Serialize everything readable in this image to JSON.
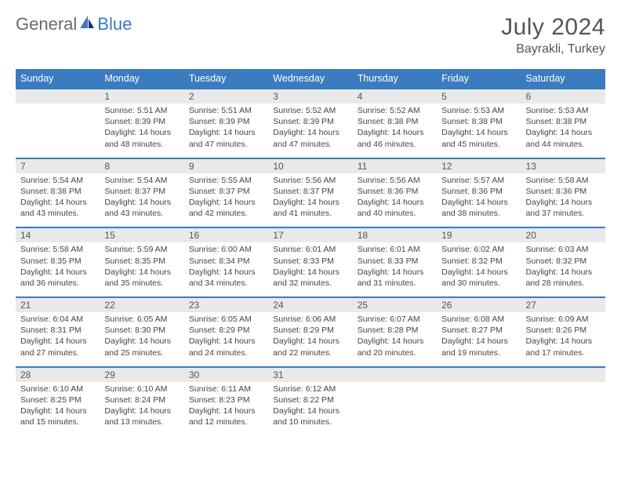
{
  "logo": {
    "text_general": "General",
    "text_blue": "Blue"
  },
  "title": "July 2024",
  "location": "Bayrakli, Turkey",
  "colors": {
    "header_bg": "#3b7bbf",
    "header_text": "#ffffff",
    "daynum_bg": "#e9e9e9",
    "border_top": "#3b7bbf",
    "body_text": "#454545",
    "title_text": "#555555"
  },
  "dow": [
    "Sunday",
    "Monday",
    "Tuesday",
    "Wednesday",
    "Thursday",
    "Friday",
    "Saturday"
  ],
  "weeks": [
    [
      null,
      {
        "n": "1",
        "sr": "5:51 AM",
        "ss": "8:39 PM",
        "dl1": "14 hours",
        "dl2": "and 48 minutes."
      },
      {
        "n": "2",
        "sr": "5:51 AM",
        "ss": "8:39 PM",
        "dl1": "14 hours",
        "dl2": "and 47 minutes."
      },
      {
        "n": "3",
        "sr": "5:52 AM",
        "ss": "8:39 PM",
        "dl1": "14 hours",
        "dl2": "and 47 minutes."
      },
      {
        "n": "4",
        "sr": "5:52 AM",
        "ss": "8:38 PM",
        "dl1": "14 hours",
        "dl2": "and 46 minutes."
      },
      {
        "n": "5",
        "sr": "5:53 AM",
        "ss": "8:38 PM",
        "dl1": "14 hours",
        "dl2": "and 45 minutes."
      },
      {
        "n": "6",
        "sr": "5:53 AM",
        "ss": "8:38 PM",
        "dl1": "14 hours",
        "dl2": "and 44 minutes."
      }
    ],
    [
      {
        "n": "7",
        "sr": "5:54 AM",
        "ss": "8:38 PM",
        "dl1": "14 hours",
        "dl2": "and 43 minutes."
      },
      {
        "n": "8",
        "sr": "5:54 AM",
        "ss": "8:37 PM",
        "dl1": "14 hours",
        "dl2": "and 43 minutes."
      },
      {
        "n": "9",
        "sr": "5:55 AM",
        "ss": "8:37 PM",
        "dl1": "14 hours",
        "dl2": "and 42 minutes."
      },
      {
        "n": "10",
        "sr": "5:56 AM",
        "ss": "8:37 PM",
        "dl1": "14 hours",
        "dl2": "and 41 minutes."
      },
      {
        "n": "11",
        "sr": "5:56 AM",
        "ss": "8:36 PM",
        "dl1": "14 hours",
        "dl2": "and 40 minutes."
      },
      {
        "n": "12",
        "sr": "5:57 AM",
        "ss": "8:36 PM",
        "dl1": "14 hours",
        "dl2": "and 38 minutes."
      },
      {
        "n": "13",
        "sr": "5:58 AM",
        "ss": "8:36 PM",
        "dl1": "14 hours",
        "dl2": "and 37 minutes."
      }
    ],
    [
      {
        "n": "14",
        "sr": "5:58 AM",
        "ss": "8:35 PM",
        "dl1": "14 hours",
        "dl2": "and 36 minutes."
      },
      {
        "n": "15",
        "sr": "5:59 AM",
        "ss": "8:35 PM",
        "dl1": "14 hours",
        "dl2": "and 35 minutes."
      },
      {
        "n": "16",
        "sr": "6:00 AM",
        "ss": "8:34 PM",
        "dl1": "14 hours",
        "dl2": "and 34 minutes."
      },
      {
        "n": "17",
        "sr": "6:01 AM",
        "ss": "8:33 PM",
        "dl1": "14 hours",
        "dl2": "and 32 minutes."
      },
      {
        "n": "18",
        "sr": "6:01 AM",
        "ss": "8:33 PM",
        "dl1": "14 hours",
        "dl2": "and 31 minutes."
      },
      {
        "n": "19",
        "sr": "6:02 AM",
        "ss": "8:32 PM",
        "dl1": "14 hours",
        "dl2": "and 30 minutes."
      },
      {
        "n": "20",
        "sr": "6:03 AM",
        "ss": "8:32 PM",
        "dl1": "14 hours",
        "dl2": "and 28 minutes."
      }
    ],
    [
      {
        "n": "21",
        "sr": "6:04 AM",
        "ss": "8:31 PM",
        "dl1": "14 hours",
        "dl2": "and 27 minutes."
      },
      {
        "n": "22",
        "sr": "6:05 AM",
        "ss": "8:30 PM",
        "dl1": "14 hours",
        "dl2": "and 25 minutes."
      },
      {
        "n": "23",
        "sr": "6:05 AM",
        "ss": "8:29 PM",
        "dl1": "14 hours",
        "dl2": "and 24 minutes."
      },
      {
        "n": "24",
        "sr": "6:06 AM",
        "ss": "8:29 PM",
        "dl1": "14 hours",
        "dl2": "and 22 minutes."
      },
      {
        "n": "25",
        "sr": "6:07 AM",
        "ss": "8:28 PM",
        "dl1": "14 hours",
        "dl2": "and 20 minutes."
      },
      {
        "n": "26",
        "sr": "6:08 AM",
        "ss": "8:27 PM",
        "dl1": "14 hours",
        "dl2": "and 19 minutes."
      },
      {
        "n": "27",
        "sr": "6:09 AM",
        "ss": "8:26 PM",
        "dl1": "14 hours",
        "dl2": "and 17 minutes."
      }
    ],
    [
      {
        "n": "28",
        "sr": "6:10 AM",
        "ss": "8:25 PM",
        "dl1": "14 hours",
        "dl2": "and 15 minutes."
      },
      {
        "n": "29",
        "sr": "6:10 AM",
        "ss": "8:24 PM",
        "dl1": "14 hours",
        "dl2": "and 13 minutes."
      },
      {
        "n": "30",
        "sr": "6:11 AM",
        "ss": "8:23 PM",
        "dl1": "14 hours",
        "dl2": "and 12 minutes."
      },
      {
        "n": "31",
        "sr": "6:12 AM",
        "ss": "8:22 PM",
        "dl1": "14 hours",
        "dl2": "and 10 minutes."
      },
      null,
      null,
      null
    ]
  ],
  "labels": {
    "sunrise": "Sunrise:",
    "sunset": "Sunset:",
    "daylight": "Daylight:"
  }
}
